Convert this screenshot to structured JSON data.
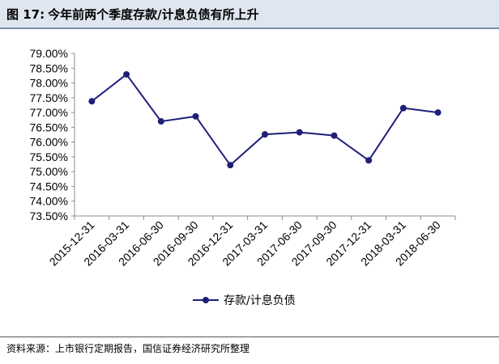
{
  "figure": {
    "number_label": "图 17:",
    "title": "今年前两个季度存款/计息负债有所上升"
  },
  "source": "资料来源：上市银行定期报告，国信证券经济研究所整理",
  "chart_data": {
    "type": "line",
    "title": "今年前两个季度存款/计息负债有所上升",
    "xlabel": "",
    "ylabel": "",
    "categories": [
      "2015-12-31",
      "2016-03-31",
      "2016-06-30",
      "2016-09-30",
      "2016-12-31",
      "2017-03-31",
      "2017-06-30",
      "2017-09-30",
      "2017-12-31",
      "2018-03-31",
      "2018-06-30"
    ],
    "series": [
      {
        "name": "存款/计息负债",
        "values": [
          77.38,
          78.29,
          76.7,
          76.87,
          75.22,
          76.26,
          76.33,
          76.22,
          75.38,
          77.15,
          77.0
        ],
        "color": "#1f1f7a",
        "marker": "circle"
      }
    ],
    "ylim": [
      73.5,
      79.0
    ],
    "yticks": [
      73.5,
      74.0,
      74.5,
      75.0,
      75.5,
      76.0,
      76.5,
      77.0,
      77.5,
      78.0,
      78.5,
      79.0
    ],
    "ytick_labels": [
      "73.50%",
      "74.00%",
      "74.50%",
      "75.00%",
      "75.50%",
      "76.00%",
      "76.50%",
      "77.00%",
      "77.50%",
      "78.00%",
      "78.50%",
      "79.00%"
    ],
    "grid": false,
    "legend_position": "bottom"
  }
}
